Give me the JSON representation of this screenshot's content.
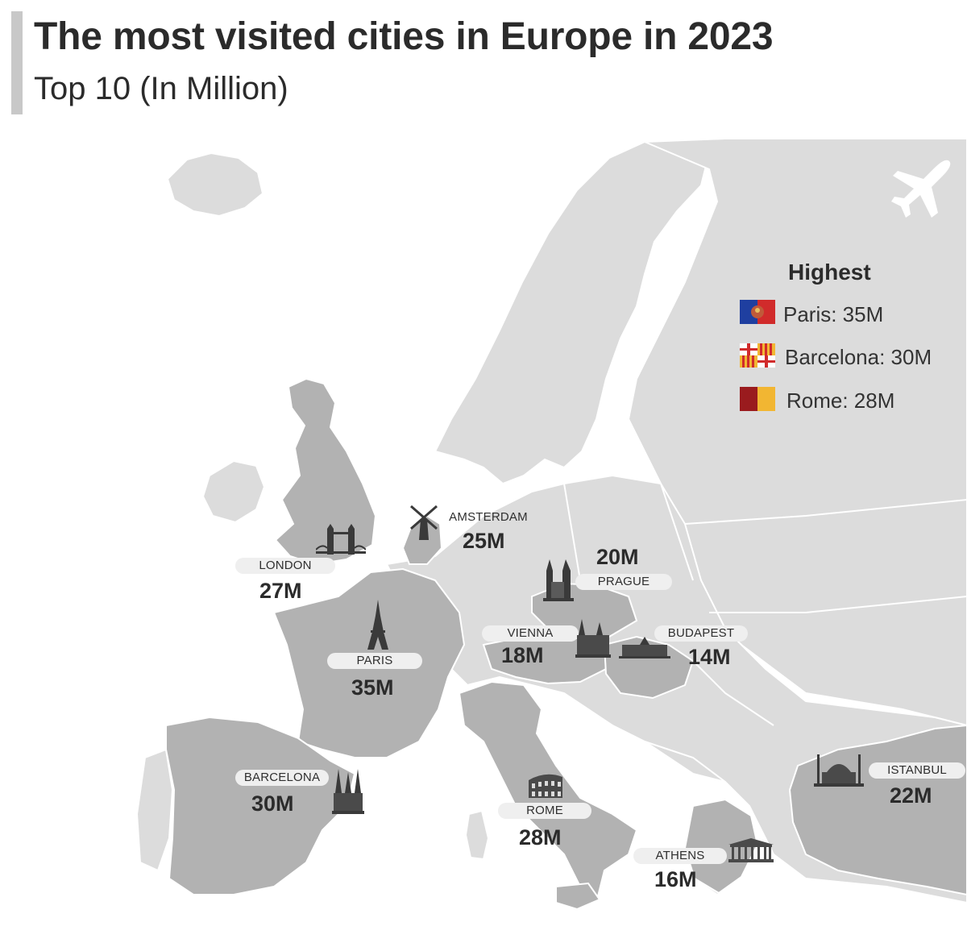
{
  "title": "The most visited cities in Europe in 2023",
  "subtitle": "Top 10 (In Million)",
  "legend": {
    "title": "Highest",
    "items": [
      {
        "label": "Paris: 35M",
        "flag": "paris-flag-icon"
      },
      {
        "label": "Barcelona: 30M",
        "flag": "barcelona-flag-icon"
      },
      {
        "label": "Rome: 28M",
        "flag": "rome-flag-icon"
      }
    ]
  },
  "cities": [
    {
      "name": "LONDON",
      "visitors": "27M",
      "value": 27,
      "landmark": "tower-bridge-icon"
    },
    {
      "name": "AMSTERDAM",
      "visitors": "25M",
      "value": 25,
      "landmark": "windmill-icon"
    },
    {
      "name": "PRAGUE",
      "visitors": "20M",
      "value": 20,
      "landmark": "tyn-church-icon"
    },
    {
      "name": "VIENNA",
      "visitors": "18M",
      "value": 18,
      "landmark": "vienna-cathedral-icon"
    },
    {
      "name": "BUDAPEST",
      "visitors": "14M",
      "value": 14,
      "landmark": "parliament-icon"
    },
    {
      "name": "PARIS",
      "visitors": "35M",
      "value": 35,
      "landmark": "eiffel-tower-icon"
    },
    {
      "name": "BARCELONA",
      "visitors": "30M",
      "value": 30,
      "landmark": "sagrada-familia-icon"
    },
    {
      "name": "ROME",
      "visitors": "28M",
      "value": 28,
      "landmark": "colosseum-icon"
    },
    {
      "name": "ISTANBUL",
      "visitors": "22M",
      "value": 22,
      "landmark": "mosque-icon"
    },
    {
      "name": "ATHENS",
      "visitors": "16M",
      "value": 16,
      "landmark": "parthenon-icon"
    }
  ],
  "colors": {
    "land": "#dcdcdc",
    "highlight": "#b2b2b2",
    "border": "#ffffff",
    "text": "#2b2b2b"
  },
  "decor": {
    "airplane": "airplane-icon"
  }
}
